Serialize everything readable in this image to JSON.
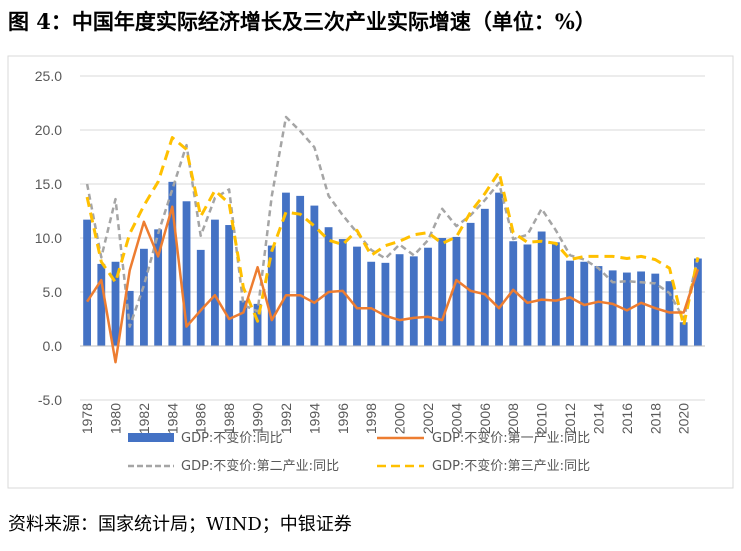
{
  "header": {
    "title": "图 4：中国年度实际经济增长及三次产业实际增速（单位：%）"
  },
  "footer": {
    "source": "资料来源：国家统计局；WIND；中银证券"
  },
  "colors": {
    "gdp": "#4472C4",
    "primary": "#ED7D31",
    "secondary": "#A5A5A5",
    "tertiary": "#FFC000",
    "grid": "#D9D9D9"
  },
  "chart_data": {
    "type": "bar",
    "x": [
      1978,
      1979,
      1980,
      1981,
      1982,
      1983,
      1984,
      1985,
      1986,
      1987,
      1988,
      1989,
      1990,
      1991,
      1992,
      1993,
      1994,
      1995,
      1996,
      1997,
      1998,
      1999,
      2000,
      2001,
      2002,
      2003,
      2004,
      2005,
      2006,
      2007,
      2008,
      2009,
      2010,
      2011,
      2012,
      2013,
      2014,
      2015,
      2016,
      2017,
      2018,
      2019,
      2020,
      2021
    ],
    "x_tick_labels": [
      "1978",
      "1980",
      "1982",
      "1984",
      "1986",
      "1988",
      "1990",
      "1992",
      "1994",
      "1996",
      "1998",
      "2000",
      "2002",
      "2004",
      "2006",
      "2008",
      "2010",
      "2012",
      "2014",
      "2016",
      "2018",
      "2020"
    ],
    "ylim": [
      -5,
      25
    ],
    "y_ticks": [
      "-5.0",
      "0.0",
      "5.0",
      "10.0",
      "15.0",
      "20.0",
      "25.0"
    ],
    "grid": true,
    "legend_position": "bottom",
    "series": [
      {
        "name": "GDP:不变价:同比",
        "kind": "bar",
        "values": [
          11.7,
          7.6,
          7.8,
          5.1,
          9.0,
          10.8,
          15.2,
          13.4,
          8.9,
          11.7,
          11.2,
          4.2,
          3.9,
          9.3,
          14.2,
          13.9,
          13.0,
          11.0,
          9.9,
          9.2,
          7.8,
          7.7,
          8.5,
          8.3,
          9.1,
          10.0,
          10.1,
          11.4,
          12.7,
          14.2,
          9.7,
          9.4,
          10.6,
          9.6,
          7.9,
          7.8,
          7.4,
          7.0,
          6.8,
          6.9,
          6.7,
          6.0,
          2.2,
          8.1
        ]
      },
      {
        "name": "GDP:不变价:第一产业:同比",
        "kind": "line",
        "values": [
          4.1,
          6.1,
          -1.5,
          7.0,
          11.5,
          8.3,
          12.9,
          1.8,
          3.3,
          4.7,
          2.5,
          3.1,
          7.3,
          2.4,
          4.7,
          4.7,
          4.0,
          5.0,
          5.1,
          3.5,
          3.5,
          2.8,
          2.4,
          2.6,
          2.7,
          2.4,
          6.1,
          5.1,
          4.8,
          3.5,
          5.2,
          4.0,
          4.3,
          4.2,
          4.5,
          3.8,
          4.1,
          3.9,
          3.3,
          4.0,
          3.5,
          3.1,
          3.1,
          7.1
        ]
      },
      {
        "name": "GDP:不变价:第二产业:同比",
        "kind": "line",
        "values": [
          15.0,
          8.2,
          13.6,
          1.8,
          5.6,
          10.4,
          14.5,
          18.6,
          10.2,
          13.7,
          14.5,
          3.8,
          3.2,
          13.9,
          21.2,
          19.9,
          18.4,
          13.9,
          12.1,
          10.5,
          8.9,
          8.1,
          9.4,
          8.4,
          9.8,
          12.7,
          11.1,
          12.1,
          13.5,
          15.1,
          9.9,
          10.3,
          12.7,
          10.7,
          8.4,
          8.0,
          7.2,
          5.9,
          6.0,
          5.9,
          5.8,
          4.9,
          2.5,
          8.2
        ]
      },
      {
        "name": "GDP:不变价:第三产业:同比",
        "kind": "line",
        "values": [
          13.8,
          7.8,
          5.9,
          10.4,
          13.0,
          15.2,
          19.3,
          18.2,
          12.0,
          14.4,
          13.2,
          5.4,
          2.3,
          8.8,
          12.4,
          12.2,
          11.1,
          9.8,
          9.4,
          10.7,
          8.4,
          9.3,
          9.7,
          10.3,
          10.5,
          9.5,
          10.1,
          12.4,
          14.1,
          16.1,
          10.5,
          9.6,
          9.7,
          9.5,
          8.0,
          8.3,
          8.3,
          8.3,
          8.1,
          8.3,
          8.0,
          7.2,
          1.9,
          8.2
        ]
      }
    ]
  }
}
